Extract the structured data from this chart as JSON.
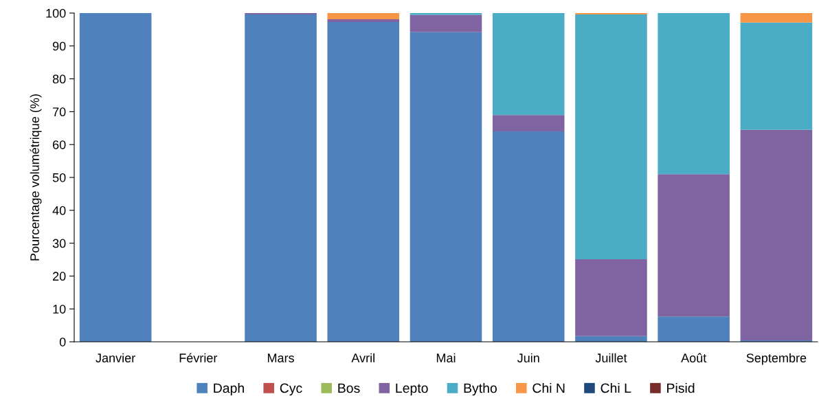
{
  "chart_data": {
    "type": "bar",
    "stacked": true,
    "ylabel": "Pourcentage volumétrique (%)",
    "categories": [
      "Janvier",
      "Février",
      "Mars",
      "Avril",
      "Mai",
      "Juin",
      "Juillet",
      "Août",
      "Septembre"
    ],
    "series": [
      {
        "name": "Daph",
        "color": "#4f81bd",
        "values": [
          100,
          null,
          99.6,
          97.3,
          94.2,
          64.0,
          1.7,
          7.7,
          0.4
        ]
      },
      {
        "name": "Cyc",
        "color": "#c0504d",
        "values": [
          null,
          null,
          null,
          null,
          null,
          null,
          null,
          null,
          null
        ]
      },
      {
        "name": "Bos",
        "color": "#9bbb59",
        "values": [
          null,
          null,
          null,
          null,
          null,
          null,
          null,
          null,
          null
        ]
      },
      {
        "name": "Lepto",
        "color": "#8064a2",
        "values": [
          null,
          null,
          0.4,
          0.8,
          5.2,
          5.0,
          23.4,
          43.3,
          64.1
        ]
      },
      {
        "name": "Bytho",
        "color": "#4bacc6",
        "values": [
          null,
          null,
          null,
          null,
          0.6,
          31.0,
          74.5,
          49.0,
          32.6
        ]
      },
      {
        "name": "Chi N",
        "color": "#f79646",
        "values": [
          null,
          null,
          null,
          1.9,
          null,
          null,
          0.4,
          null,
          2.9
        ]
      },
      {
        "name": "Chi L",
        "color": "#1f497d",
        "values": [
          null,
          null,
          null,
          null,
          null,
          null,
          null,
          null,
          null
        ]
      },
      {
        "name": "Pisid",
        "color": "#772c2a",
        "values": [
          null,
          null,
          null,
          null,
          null,
          null,
          null,
          null,
          null
        ]
      }
    ],
    "ylim": [
      0,
      100
    ],
    "yticks": [
      0,
      10,
      20,
      30,
      40,
      50,
      60,
      70,
      80,
      90,
      100
    ],
    "grid": false,
    "legend": "bottom"
  }
}
